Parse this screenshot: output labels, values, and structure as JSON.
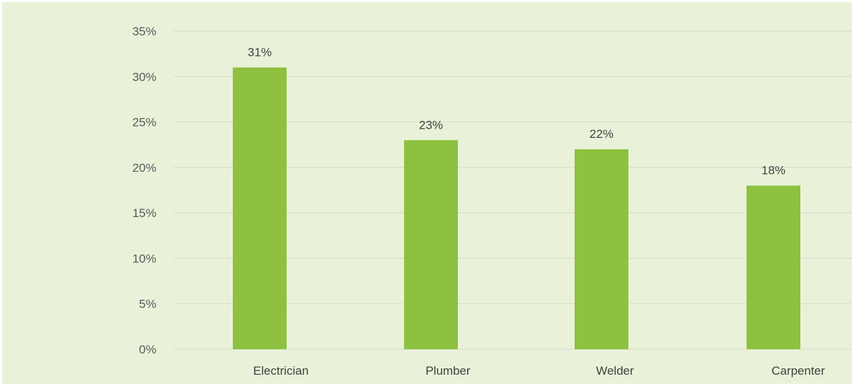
{
  "chart_data": {
    "type": "bar",
    "title": "",
    "xlabel": "",
    "ylabel": "",
    "categories": [
      "Electrician",
      "Plumber",
      "Welder",
      "Carpenter"
    ],
    "values": [
      31,
      23,
      22,
      18
    ],
    "data_labels": [
      "31%",
      "23%",
      "22%",
      "18%"
    ],
    "ylim": [
      0,
      35
    ],
    "yticks": [
      0,
      5,
      10,
      15,
      20,
      25,
      30,
      35
    ],
    "ytick_labels": [
      "0%",
      "5%",
      "10%",
      "15%",
      "20%",
      "25%",
      "30%",
      "35%"
    ],
    "grid": true,
    "legend": "none"
  },
  "colors": {
    "background": "#e9f2d9",
    "bar": "#8dc13f",
    "gridline": "#d4d9cf",
    "tick_text": "#595959",
    "label_text": "#404040"
  }
}
